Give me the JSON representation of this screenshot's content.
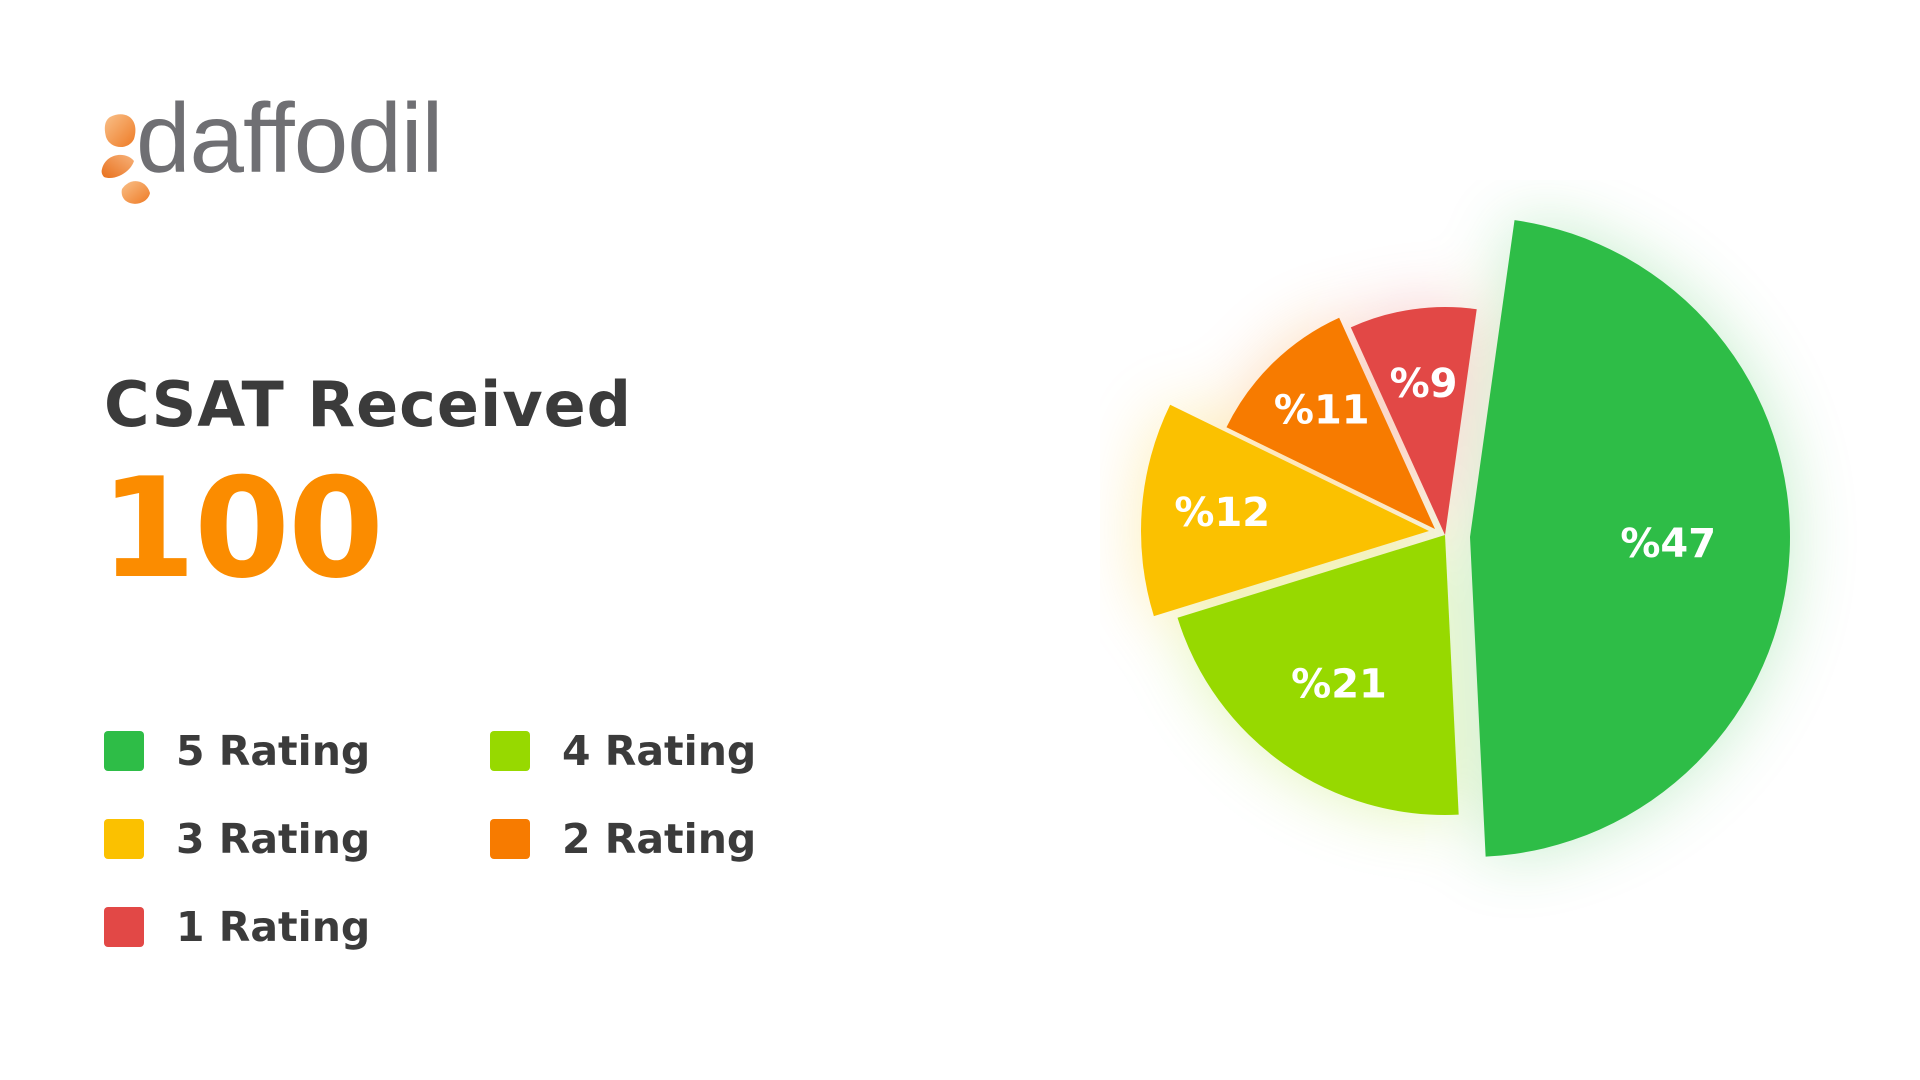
{
  "logo": {
    "wordmark": "daffodil",
    "colors": {
      "petal_light": "#f7b27a",
      "petal_dark": "#ef7d2a",
      "text": "#6f6f73"
    }
  },
  "header": {
    "title": "CSAT Received",
    "total": "100"
  },
  "legend": {
    "items": [
      {
        "label": "5 Rating",
        "color": "#2ebd47"
      },
      {
        "label": "4 Rating",
        "color": "#97d900"
      },
      {
        "label": "3 Rating",
        "color": "#fbc100"
      },
      {
        "label": "2 Rating",
        "color": "#f77b00"
      },
      {
        "label": "1 Rating",
        "color": "#e24846"
      }
    ]
  },
  "chart_data": {
    "type": "pie",
    "categories": [
      "5 Rating",
      "4 Rating",
      "3 Rating",
      "2 Rating",
      "1 Rating"
    ],
    "values": [
      47,
      21,
      12,
      11,
      9
    ],
    "data_labels": [
      "%47",
      "%21",
      "%12",
      "%11",
      "%9"
    ],
    "colors": [
      "#2ebd47",
      "#97d900",
      "#fbc100",
      "#f77b00",
      "#e24846"
    ],
    "title": "",
    "legend_position": "left",
    "style": "exploded variable-radius slices with soft glow"
  }
}
